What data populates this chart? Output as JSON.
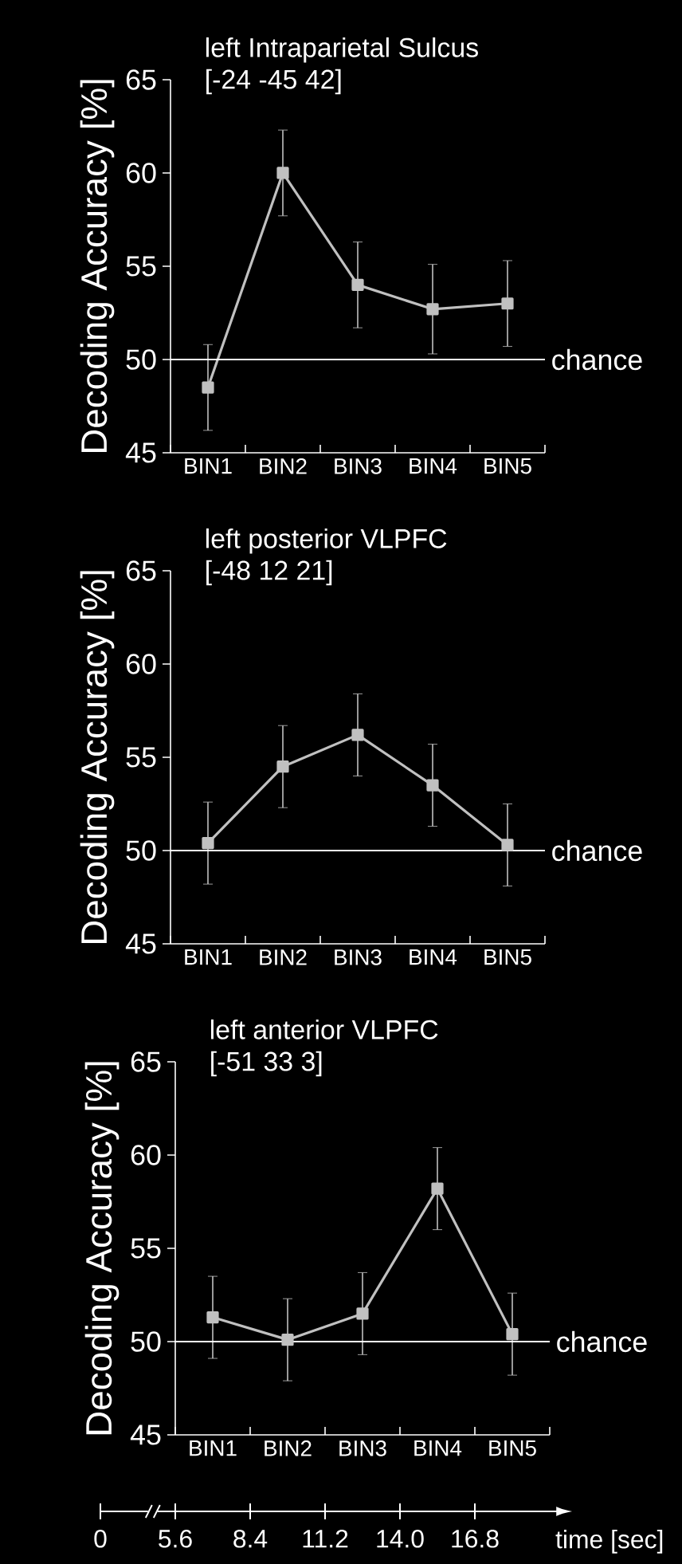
{
  "chart_data": [
    {
      "type": "line",
      "title": "left Intraparietal Sulcus",
      "subtitle": "[-24 -45 42]",
      "ylabel": "Decoding Accuracy [%]",
      "categories": [
        "BIN1",
        "BIN2",
        "BIN3",
        "BIN4",
        "BIN5"
      ],
      "series": [
        {
          "color": "#c0c0c0",
          "values": [
            48.5,
            60.0,
            54.0,
            52.7,
            53.0
          ],
          "errors": [
            2.3,
            2.3,
            2.3,
            2.4,
            2.3
          ]
        }
      ],
      "ylim": [
        45,
        65
      ],
      "yticks": [
        45,
        50,
        55,
        60,
        65
      ],
      "marker": "square",
      "ref_lines": [
        {
          "axis": "y",
          "value": 50,
          "label": "chance",
          "color": "#ffffff"
        }
      ]
    },
    {
      "type": "line",
      "title": "left posterior VLPFC",
      "subtitle": "[-48 12 21]",
      "ylabel": "Decoding Accuracy [%]",
      "categories": [
        "BIN1",
        "BIN2",
        "BIN3",
        "BIN4",
        "BIN5"
      ],
      "series": [
        {
          "color": "#c0c0c0",
          "values": [
            50.4,
            54.5,
            56.2,
            53.5,
            50.3
          ],
          "errors": [
            2.2,
            2.2,
            2.2,
            2.2,
            2.2
          ]
        }
      ],
      "ylim": [
        45,
        65
      ],
      "yticks": [
        45,
        50,
        55,
        60,
        65
      ],
      "marker": "square",
      "ref_lines": [
        {
          "axis": "y",
          "value": 50,
          "label": "chance",
          "color": "#ffffff"
        }
      ]
    },
    {
      "type": "line",
      "title": "left anterior VLPFC",
      "subtitle": "[-51 33 3]",
      "ylabel": "Decoding Accuracy [%]",
      "categories": [
        "BIN1",
        "BIN2",
        "BIN3",
        "BIN4",
        "BIN5"
      ],
      "series": [
        {
          "color": "#c0c0c0",
          "values": [
            51.3,
            50.1,
            51.5,
            58.2,
            50.4
          ],
          "errors": [
            2.2,
            2.2,
            2.2,
            2.2,
            2.2
          ]
        }
      ],
      "ylim": [
        45,
        65
      ],
      "yticks": [
        45,
        50,
        55,
        60,
        65
      ],
      "marker": "square",
      "ref_lines": [
        {
          "axis": "y",
          "value": 50,
          "label": "chance",
          "color": "#ffffff"
        }
      ],
      "annotations": [
        "0",
        "5.6",
        "8.4",
        "11.2",
        "14.0",
        "16.8",
        "time [sec]"
      ]
    }
  ]
}
